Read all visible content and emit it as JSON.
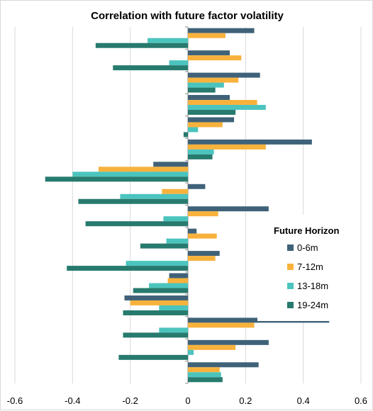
{
  "chart_data": {
    "type": "bar",
    "orientation": "horizontal",
    "title": "Correlation with future factor volatility",
    "xlabel": "",
    "ylabel": "",
    "xlim": [
      -0.6,
      0.6
    ],
    "x_ticks": [
      -0.6,
      -0.4,
      -0.2,
      0,
      0.2,
      0.4,
      0.6
    ],
    "x_tick_labels": [
      "-0.6",
      "-0.4",
      "-0.2",
      "0",
      "0.2",
      "0.4",
      "0.6"
    ],
    "grid": "vertical",
    "legend": {
      "title": "Future Horizon",
      "position": "right"
    },
    "category_count": 16,
    "series": [
      {
        "name": "0-6m",
        "color": "#3f6278",
        "values": [
          0.23,
          0.145,
          0.25,
          0.145,
          0.16,
          0.43,
          -0.12,
          0.06,
          0.28,
          0.03,
          0.11,
          -0.065,
          -0.22,
          0.49,
          0.28,
          0.245
        ]
      },
      {
        "name": "7-12m",
        "color": "#f8b23c",
        "values": [
          0.13,
          0.185,
          0.175,
          0.24,
          0.12,
          0.27,
          -0.31,
          -0.09,
          0.105,
          0.1,
          0.095,
          -0.07,
          -0.2,
          0.23,
          0.165,
          0.11
        ]
      },
      {
        "name": "13-18m",
        "color": "#4cc4be",
        "values": [
          -0.14,
          -0.065,
          0.125,
          0.27,
          0.035,
          0.09,
          -0.4,
          -0.235,
          -0.085,
          -0.075,
          -0.215,
          -0.135,
          -0.1,
          -0.1,
          0.02,
          0.115
        ]
      },
      {
        "name": "19-24m",
        "color": "#277a6e",
        "values": [
          -0.32,
          -0.26,
          0.095,
          0.165,
          -0.015,
          0.085,
          -0.495,
          -0.38,
          -0.355,
          -0.165,
          -0.42,
          -0.19,
          -0.225,
          -0.225,
          -0.24,
          0.12
        ]
      }
    ]
  }
}
